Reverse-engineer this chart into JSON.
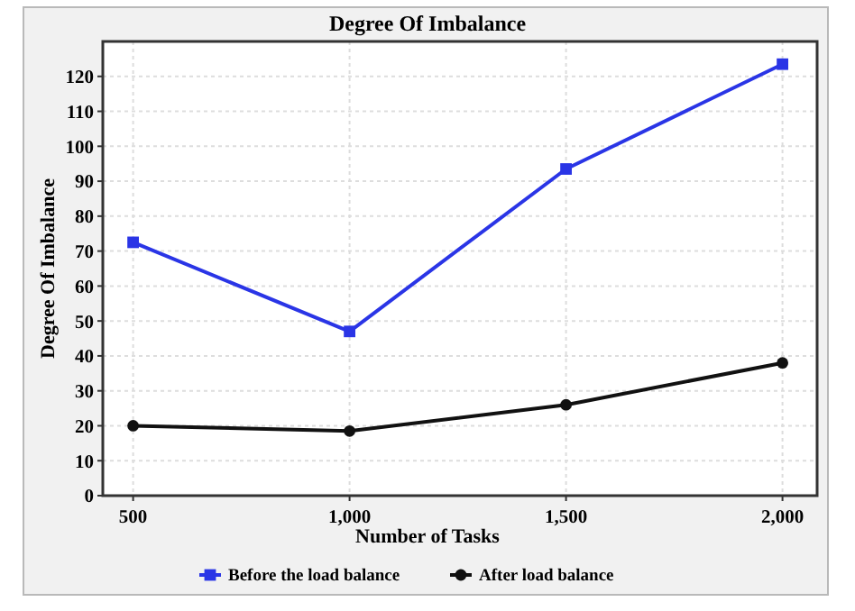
{
  "chart_data": {
    "type": "line",
    "title": "Degree Of Imbalance",
    "xlabel": "Number of Tasks",
    "ylabel": "Degree Of Imbalance",
    "x": [
      500,
      1000,
      1500,
      2000
    ],
    "xlim": [
      430,
      2080
    ],
    "xticks": [
      {
        "value": 500,
        "label": "500"
      },
      {
        "value": 1000,
        "label": "1,000"
      },
      {
        "value": 1500,
        "label": "1,500"
      },
      {
        "value": 2000,
        "label": "2,000"
      }
    ],
    "ylim": [
      0,
      130
    ],
    "yticks": [
      0,
      10,
      20,
      30,
      40,
      50,
      60,
      70,
      80,
      90,
      100,
      110,
      120
    ],
    "grid": true,
    "legend": "bottom",
    "line_style": "solid",
    "series": [
      {
        "name": "Before the load balance",
        "color": "#2a35e6",
        "marker": "square",
        "values": [
          72.5,
          47,
          93.5,
          123.5
        ]
      },
      {
        "name": "After load balance",
        "color": "#111111",
        "marker": "circle",
        "values": [
          20,
          18.5,
          26,
          38
        ]
      }
    ]
  }
}
